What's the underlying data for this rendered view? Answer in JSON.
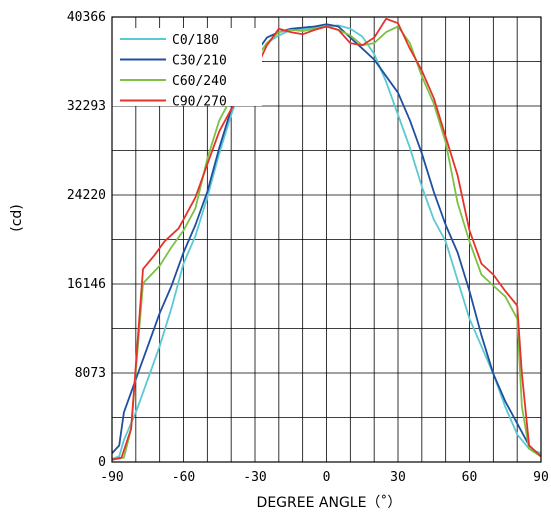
{
  "chart_data": {
    "type": "line",
    "xlabel": "DEGREE ANGLE（˚）",
    "ylabel": "(cd)",
    "xlim": [
      -90,
      90
    ],
    "ylim": [
      0,
      40366
    ],
    "x_ticks": [
      -90,
      -60,
      -30,
      0,
      30,
      60,
      90
    ],
    "x_tick_labels": [
      "-90",
      "-60",
      "-30",
      "0",
      "30",
      "60",
      "90"
    ],
    "y_ticks": [
      0,
      8073,
      16146,
      24220,
      32293,
      40366
    ],
    "y_tick_labels": [
      "0",
      "8073",
      "16146",
      "24220",
      "32293",
      "40366"
    ],
    "grid": true,
    "legend_position": "top-left",
    "series": [
      {
        "name": "C0/180",
        "color": "#5cc8d2",
        "points": [
          [
            -90,
            300
          ],
          [
            -87,
            500
          ],
          [
            -85,
            2000
          ],
          [
            -80,
            4500
          ],
          [
            -75,
            7500
          ],
          [
            -70,
            10500
          ],
          [
            -65,
            14000
          ],
          [
            -60,
            18000
          ],
          [
            -55,
            20500
          ],
          [
            -50,
            24000
          ],
          [
            -45,
            28000
          ],
          [
            -40,
            31500
          ],
          [
            -35,
            34500
          ],
          [
            -30,
            36500
          ],
          [
            -25,
            38000
          ],
          [
            -20,
            38700
          ],
          [
            -15,
            39200
          ],
          [
            -10,
            39300
          ],
          [
            -5,
            39400
          ],
          [
            0,
            39500
          ],
          [
            5,
            39600
          ],
          [
            10,
            39300
          ],
          [
            15,
            38600
          ],
          [
            20,
            37000
          ],
          [
            25,
            34500
          ],
          [
            30,
            31500
          ],
          [
            35,
            28500
          ],
          [
            40,
            25000
          ],
          [
            45,
            22000
          ],
          [
            50,
            20000
          ],
          [
            55,
            16500
          ],
          [
            60,
            13000
          ],
          [
            65,
            10500
          ],
          [
            70,
            8000
          ],
          [
            75,
            5000
          ],
          [
            80,
            2500
          ],
          [
            85,
            1200
          ],
          [
            90,
            800
          ]
        ]
      },
      {
        "name": "C30/210",
        "color": "#1f4fa0",
        "points": [
          [
            -90,
            800
          ],
          [
            -87,
            1500
          ],
          [
            -85,
            4500
          ],
          [
            -80,
            7500
          ],
          [
            -75,
            10500
          ],
          [
            -70,
            13500
          ],
          [
            -65,
            16000
          ],
          [
            -60,
            19000
          ],
          [
            -55,
            21500
          ],
          [
            -50,
            24500
          ],
          [
            -45,
            28500
          ],
          [
            -40,
            32000
          ],
          [
            -35,
            35000
          ],
          [
            -30,
            37000
          ],
          [
            -25,
            38500
          ],
          [
            -20,
            39000
          ],
          [
            -15,
            39300
          ],
          [
            -10,
            39400
          ],
          [
            -5,
            39500
          ],
          [
            0,
            39700
          ],
          [
            5,
            39500
          ],
          [
            10,
            38500
          ],
          [
            15,
            37500
          ],
          [
            20,
            36500
          ],
          [
            25,
            35000
          ],
          [
            30,
            33500
          ],
          [
            35,
            31000
          ],
          [
            40,
            28000
          ],
          [
            45,
            24500
          ],
          [
            50,
            21500
          ],
          [
            55,
            19000
          ],
          [
            60,
            15500
          ],
          [
            65,
            11500
          ],
          [
            70,
            8000
          ],
          [
            75,
            5500
          ],
          [
            80,
            3500
          ],
          [
            85,
            1500
          ],
          [
            90,
            500
          ]
        ]
      },
      {
        "name": "C60/240",
        "color": "#7cc143",
        "points": [
          [
            -90,
            200
          ],
          [
            -85,
            400
          ],
          [
            -82,
            3000
          ],
          [
            -77,
            16200
          ],
          [
            -70,
            17800
          ],
          [
            -65,
            19500
          ],
          [
            -60,
            21000
          ],
          [
            -55,
            23000
          ],
          [
            -50,
            27500
          ],
          [
            -45,
            31000
          ],
          [
            -40,
            33000
          ],
          [
            -35,
            34800
          ],
          [
            -30,
            36500
          ],
          [
            -25,
            38000
          ],
          [
            -20,
            39000
          ],
          [
            -15,
            39200
          ],
          [
            -10,
            39100
          ],
          [
            -5,
            39300
          ],
          [
            0,
            39500
          ],
          [
            5,
            39200
          ],
          [
            10,
            38700
          ],
          [
            15,
            37800
          ],
          [
            20,
            38000
          ],
          [
            25,
            39000
          ],
          [
            30,
            39500
          ],
          [
            35,
            38000
          ],
          [
            40,
            35000
          ],
          [
            45,
            32500
          ],
          [
            50,
            29000
          ],
          [
            55,
            23500
          ],
          [
            60,
            20000
          ],
          [
            65,
            17000
          ],
          [
            70,
            16000
          ],
          [
            75,
            15000
          ],
          [
            80,
            13000
          ],
          [
            82,
            5000
          ],
          [
            85,
            1200
          ],
          [
            90,
            500
          ]
        ]
      },
      {
        "name": "C90/270",
        "color": "#e5322b",
        "points": [
          [
            -90,
            200
          ],
          [
            -86,
            400
          ],
          [
            -82,
            3000
          ],
          [
            -77,
            17500
          ],
          [
            -72,
            18800
          ],
          [
            -68,
            20000
          ],
          [
            -62,
            21200
          ],
          [
            -55,
            24000
          ],
          [
            -50,
            27000
          ],
          [
            -45,
            30000
          ],
          [
            -40,
            32000
          ],
          [
            -35,
            33500
          ],
          [
            -30,
            35500
          ],
          [
            -25,
            37800
          ],
          [
            -20,
            39300
          ],
          [
            -15,
            39000
          ],
          [
            -10,
            38800
          ],
          [
            -5,
            39200
          ],
          [
            0,
            39500
          ],
          [
            5,
            39200
          ],
          [
            10,
            38000
          ],
          [
            15,
            37800
          ],
          [
            20,
            38500
          ],
          [
            25,
            40200
          ],
          [
            30,
            39800
          ],
          [
            35,
            37500
          ],
          [
            40,
            35500
          ],
          [
            45,
            33000
          ],
          [
            50,
            29500
          ],
          [
            55,
            26000
          ],
          [
            60,
            21000
          ],
          [
            65,
            18000
          ],
          [
            70,
            17000
          ],
          [
            75,
            15500
          ],
          [
            80,
            14200
          ],
          [
            82,
            8000
          ],
          [
            85,
            1500
          ],
          [
            90,
            500
          ]
        ]
      }
    ]
  }
}
